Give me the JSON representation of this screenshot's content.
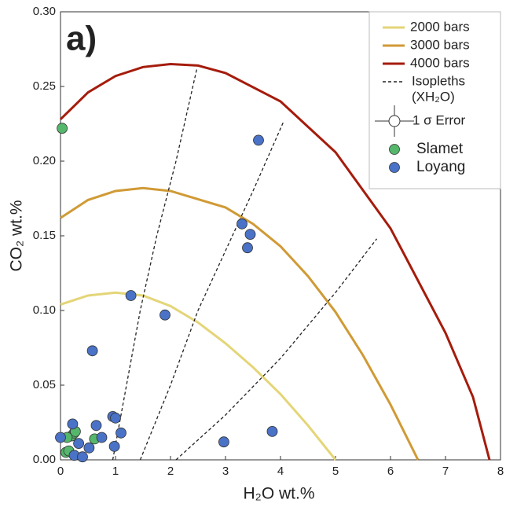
{
  "chart_data": {
    "type": "scatter",
    "panel_label": "a)",
    "xlabel": "H₂O wt.%",
    "ylabel": "CO₂ wt.%",
    "xlim": [
      0,
      8
    ],
    "ylim": [
      0,
      0.3
    ],
    "xticks": [
      0,
      1,
      2,
      3,
      4,
      5,
      6,
      7,
      8
    ],
    "yticks": [
      {
        "value": 0,
        "label": "0.00"
      },
      {
        "value": 0.05,
        "label": "0.05"
      },
      {
        "value": 0.1,
        "label": "0.10"
      },
      {
        "value": 0.15,
        "label": "0.15"
      },
      {
        "value": 0.2,
        "label": "0.20"
      },
      {
        "value": 0.25,
        "label": "0.25"
      },
      {
        "value": 0.3,
        "label": "0.30"
      }
    ],
    "legend": "upper right",
    "curves": [
      {
        "name": "2000 bars",
        "color": "#e4d577",
        "x": [
          0,
          0.5,
          1,
          1.5,
          2,
          2.5,
          3,
          3.5,
          4,
          4.5,
          5
        ],
        "values": [
          0.104,
          0.11,
          0.112,
          0.11,
          0.103,
          0.092,
          0.078,
          0.062,
          0.044,
          0.023,
          0
        ]
      },
      {
        "name": "3000 bars",
        "color": "#d09a35",
        "x": [
          0,
          0.5,
          1,
          1.5,
          2,
          3,
          3.5,
          4,
          4.5,
          5,
          5.5,
          6,
          6.5
        ],
        "values": [
          0.162,
          0.174,
          0.18,
          0.182,
          0.18,
          0.169,
          0.158,
          0.143,
          0.123,
          0.099,
          0.07,
          0.037,
          0
        ]
      },
      {
        "name": "4000 bars",
        "color": "#a51c0c",
        "x": [
          0,
          0.5,
          1,
          1.5,
          2,
          2.5,
          3,
          4,
          5,
          6,
          7,
          7.5,
          7.8
        ],
        "values": [
          0.228,
          0.246,
          0.257,
          0.263,
          0.265,
          0.264,
          0.259,
          0.24,
          0.206,
          0.155,
          0.085,
          0.042,
          0
        ]
      }
    ],
    "isopleths": {
      "name_lines": [
        "Isopleths",
        "(XH₂O)"
      ],
      "color": "#222222",
      "lines": [
        {
          "x": [
            0.95,
            1.2,
            1.45,
            1.75,
            2.1,
            2.48
          ],
          "values": [
            0,
            0.05,
            0.1,
            0.15,
            0.2,
            0.262
          ]
        },
        {
          "x": [
            1.45,
            2.0,
            2.5,
            3.0,
            3.5,
            4.05
          ],
          "values": [
            0,
            0.05,
            0.1,
            0.14,
            0.18,
            0.226
          ]
        },
        {
          "x": [
            2.1,
            3.0,
            4.0,
            5.0,
            5.75
          ],
          "values": [
            0,
            0.03,
            0.068,
            0.112,
            0.148
          ]
        }
      ]
    },
    "error_legend": "1 σ Error",
    "series": [
      {
        "name": "Slamet",
        "color": "#55b76c",
        "x": [
          0.03,
          0.1,
          0.15,
          0.2,
          0.25,
          0.27,
          0.12,
          0.62
        ],
        "values": [
          0.222,
          0.005,
          0.006,
          0.016,
          0.018,
          0.019,
          0.015,
          0.014
        ]
      },
      {
        "name": "Loyang",
        "color": "#4a72c6",
        "x": [
          3.6,
          3.3,
          3.45,
          3.4,
          1.28,
          1.9,
          0.58,
          0.95,
          1.0,
          0.22,
          0.65,
          0.75,
          1.1,
          0.0,
          0.52,
          0.98,
          0.33,
          0.25,
          0.4,
          2.97,
          3.85
        ],
        "values": [
          0.214,
          0.158,
          0.151,
          0.142,
          0.11,
          0.097,
          0.073,
          0.029,
          0.028,
          0.024,
          0.023,
          0.015,
          0.018,
          0.015,
          0.008,
          0.009,
          0.011,
          0.003,
          0.002,
          0.012,
          0.019
        ]
      }
    ]
  }
}
